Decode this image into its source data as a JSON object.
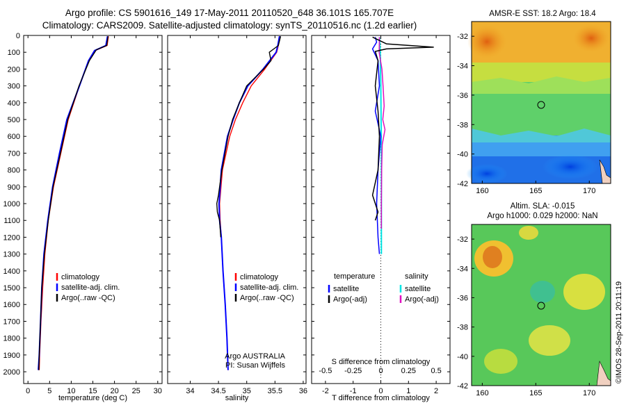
{
  "header": {
    "line1": "Argo profile: CS 5901616_149 17-May-2011 20110520_648 36.101S 165.707E",
    "line2": "Climatology: CARS2009. Satellite-adjusted climatology: synTS_20110516.nc (1.2d earlier)"
  },
  "colors": {
    "climatology": "#ff0000",
    "satellite": "#0000ff",
    "argo": "#000000",
    "salinity_satellite": "#00e5e5",
    "salinity_argo": "#e010c0"
  },
  "chart_data": [
    {
      "type": "line",
      "panel": "temperature",
      "xlabel": "temperature (deg C)",
      "ylabel": "",
      "xlim": [
        -1,
        31
      ],
      "ylim": [
        2070,
        0
      ],
      "xticks": [
        "0",
        "5",
        "10",
        "15",
        "20",
        "25",
        "30"
      ],
      "yticks": [
        "0",
        "100",
        "200",
        "300",
        "400",
        "500",
        "600",
        "700",
        "800",
        "900",
        "1000",
        "1100",
        "1200",
        "1300",
        "1400",
        "1500",
        "1600",
        "1700",
        "1800",
        "1900",
        "2000"
      ],
      "legend": [
        "climatology",
        "satellite-adj. clim.",
        "Argo(..raw -QC)"
      ],
      "series": [
        {
          "name": "climatology",
          "depth": [
            5,
            60,
            90,
            150,
            300,
            500,
            700,
            900,
            1100,
            1300,
            1500,
            1700,
            1900,
            1990
          ],
          "values": [
            18.6,
            18.3,
            15.5,
            14.0,
            11.9,
            9.3,
            7.6,
            5.9,
            4.7,
            3.9,
            3.4,
            3.0,
            2.7,
            2.6
          ]
        },
        {
          "name": "satellite-adj. clim.",
          "depth": [
            5,
            60,
            90,
            150,
            300,
            500,
            700,
            900,
            1100,
            1300,
            1500,
            1700,
            1900,
            1990
          ],
          "values": [
            18.4,
            18.0,
            15.4,
            14.0,
            11.9,
            9.0,
            7.3,
            5.7,
            4.6,
            3.7,
            3.2,
            2.9,
            2.6,
            2.4
          ]
        },
        {
          "name": "Argo(..raw -QC)",
          "depth": [
            5,
            60,
            85,
            150,
            300,
            500,
            700,
            900,
            1100,
            1300,
            1500,
            1700,
            1900,
            1990
          ],
          "values": [
            18.5,
            18.2,
            15.8,
            14.2,
            11.8,
            9.2,
            7.5,
            5.8,
            4.7,
            3.8,
            3.2,
            2.9,
            2.6,
            2.5
          ]
        }
      ]
    },
    {
      "type": "line",
      "panel": "salinity",
      "xlabel": "salinity",
      "xlim": [
        33.6,
        36.05
      ],
      "ylim": [
        2070,
        0
      ],
      "xticks": [
        "34",
        "34.5",
        "35",
        "35.5",
        "36"
      ],
      "legend": [
        "climatology",
        "satellite-adj. clim.",
        "Argo(..raw -QC)"
      ],
      "annotation": [
        "Argo AUSTRALIA",
        "PI: Susan Wijffels"
      ],
      "series": [
        {
          "name": "climatology",
          "depth": [
            5,
            60,
            100,
            200,
            300,
            400,
            500,
            600,
            800,
            1000,
            1100,
            1200,
            1400,
            1600,
            1800,
            1990
          ],
          "values": [
            35.58,
            35.56,
            35.53,
            35.32,
            35.08,
            34.93,
            34.8,
            34.7,
            34.57,
            34.52,
            34.53,
            34.55,
            34.58,
            34.62,
            34.65,
            34.67
          ]
        },
        {
          "name": "satellite-adj. clim.",
          "depth": [
            5,
            60,
            100,
            200,
            300,
            400,
            500,
            600,
            800,
            1000,
            1100,
            1200,
            1400,
            1600,
            1800,
            1990
          ],
          "values": [
            35.58,
            35.55,
            35.52,
            35.29,
            35.02,
            34.87,
            34.76,
            34.66,
            34.55,
            34.51,
            34.52,
            34.55,
            34.58,
            34.62,
            34.65,
            34.67
          ]
        },
        {
          "name": "Argo(..raw -QC)",
          "depth": [
            5,
            60,
            100,
            150,
            200,
            300,
            400,
            500,
            600,
            800,
            950,
            1000,
            1050,
            1100,
            1200
          ],
          "values": [
            35.6,
            35.56,
            35.4,
            35.43,
            35.3,
            35.0,
            34.87,
            34.75,
            34.67,
            34.56,
            34.5,
            34.47,
            34.48,
            34.52,
            34.54
          ]
        }
      ]
    },
    {
      "type": "line",
      "panel": "difference",
      "xlabel": "T difference from climatology",
      "xlabel_top": "S difference from climatology",
      "xlim": [
        -2.5,
        2.5
      ],
      "ylim": [
        2070,
        0
      ],
      "xticks": [
        "-2",
        "-1",
        "0",
        "1",
        "2"
      ],
      "xticks_top": [
        "-0.5",
        "-0.25",
        "0",
        "0.25",
        "0.5"
      ],
      "legend_headers": [
        "temperature",
        "salinity"
      ],
      "legend": [
        "satellite",
        "Argo(-adj)",
        "satellite",
        "Argo(-adj)"
      ],
      "series": [
        {
          "name": "satellite",
          "depth": [
            10,
            40,
            80,
            150,
            300,
            450,
            600,
            800,
            1000,
            1200,
            1300
          ],
          "values": [
            -0.2,
            -0.15,
            -0.3,
            -0.1,
            -0.05,
            -0.2,
            0.0,
            -0.1,
            -0.15,
            -0.1,
            -0.05
          ]
        },
        {
          "name": "Argo(-adj)",
          "depth": [
            10,
            50,
            70,
            80,
            95,
            150,
            300,
            450,
            600,
            800,
            950,
            1050,
            1100
          ],
          "values": [
            -0.3,
            0.2,
            1.9,
            0.2,
            -0.2,
            -0.1,
            -0.2,
            -0.1,
            -0.05,
            -0.1,
            -0.3,
            -0.1,
            -0.2
          ]
        },
        {
          "name": "satellite",
          "depth": [
            10,
            100,
            300,
            500,
            700,
            900,
            1100,
            1300
          ],
          "values": [
            -0.05,
            -0.02,
            0.0,
            0.01,
            0.02,
            0.02,
            0.02,
            0.02
          ]
        },
        {
          "name": "Argo(-adj)",
          "depth": [
            10,
            100,
            200,
            300,
            420,
            500,
            560,
            650,
            800,
            1000,
            1100,
            1150
          ],
          "values": [
            -0.05,
            -0.06,
            0.04,
            0.08,
            0.12,
            0.07,
            0.15,
            0.05,
            0.03,
            0.02,
            0.02,
            0.02
          ]
        }
      ]
    }
  ],
  "maps": {
    "top": {
      "title": "AMSR-E SST: 18.2 Argo: 18.4",
      "yticks": [
        "-32",
        "-34",
        "-36",
        "-38",
        "-40",
        "-42"
      ],
      "xticks": [
        "160",
        "165",
        "170"
      ]
    },
    "bottom": {
      "title_line1": "Altim. SLA: -0.015",
      "title_line2": "Argo h1000: 0.029 h2000: NaN",
      "yticks": [
        "-32",
        "-34",
        "-36",
        "-38",
        "-40",
        "-42"
      ],
      "xticks": [
        "160",
        "165",
        "170"
      ]
    }
  },
  "footer": {
    "stamp": "©IMOS 28-Sep-2011 20:11:19"
  }
}
